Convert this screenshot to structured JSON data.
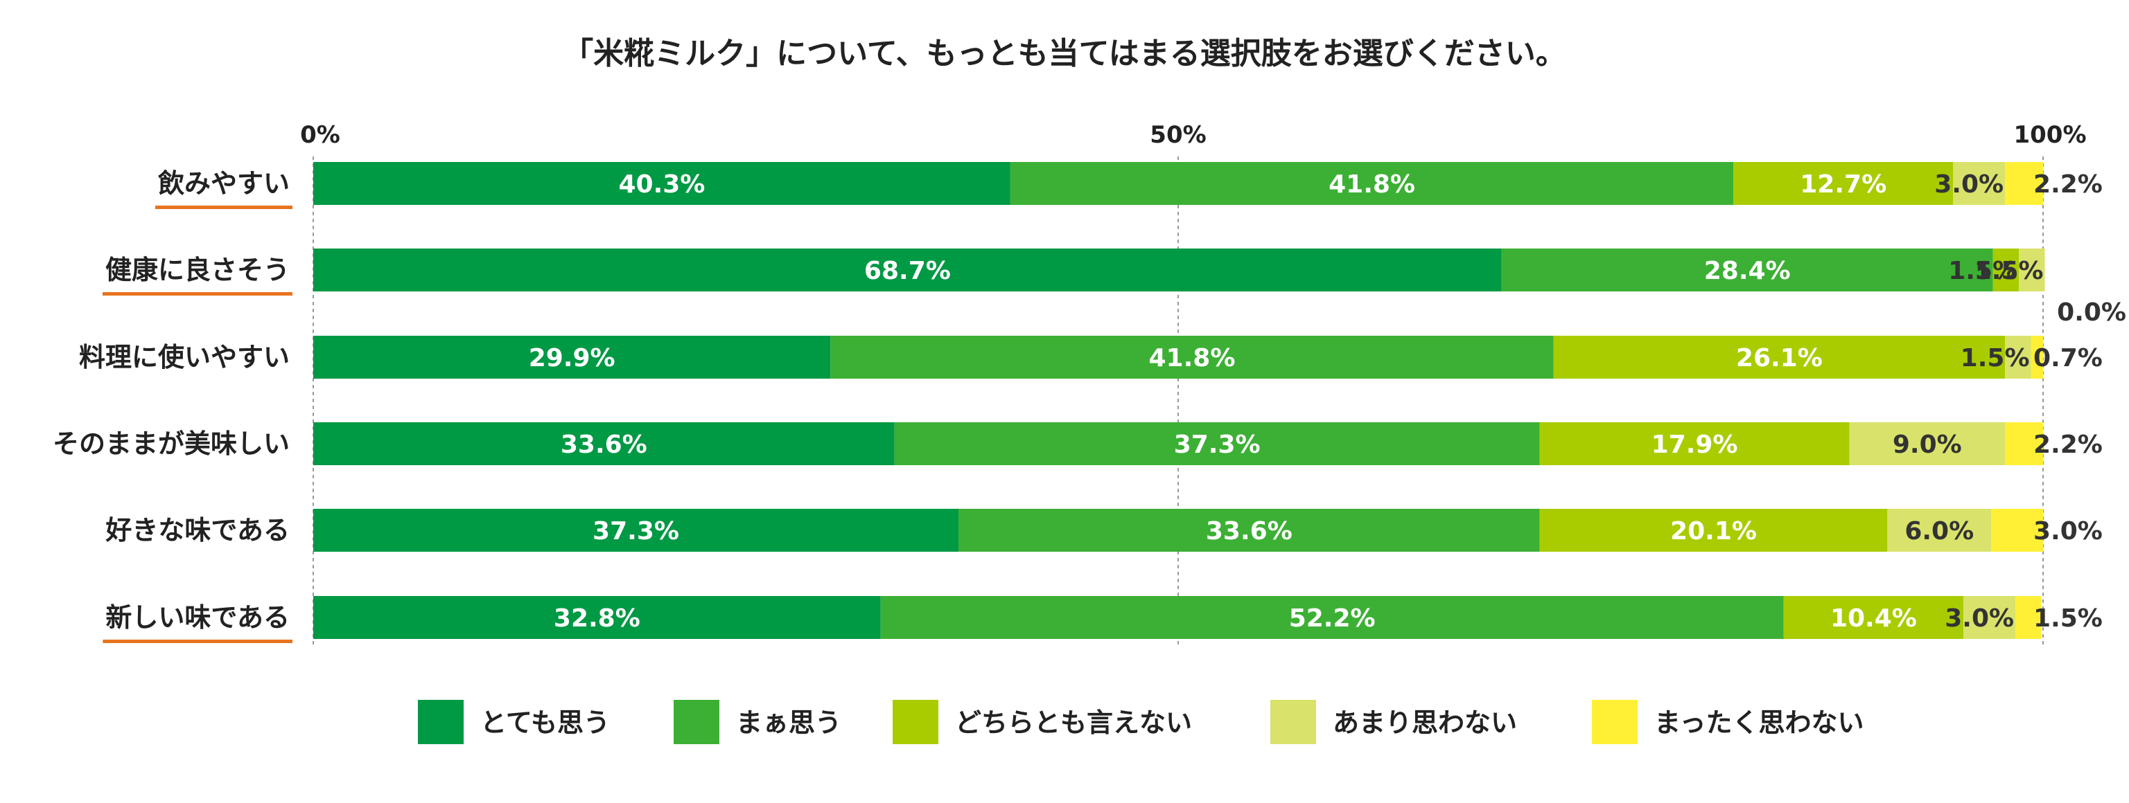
{
  "chart_data": {
    "type": "bar",
    "orientation": "horizontal",
    "stacked": true,
    "title": "「米糀ミルク」について、もっとも当てはまる選択肢をお選びください。",
    "x_ticks": [
      "0%",
      "50%",
      "100%"
    ],
    "xlim": [
      0,
      100
    ],
    "categories": [
      "飲みやすい",
      "健康に良さそう",
      "料理に使いやすい",
      "そのままが美味しい",
      "好きな味である",
      "新しい味である"
    ],
    "underlined_categories": [
      "飲みやすい",
      "健康に良さそう",
      "新しい味である"
    ],
    "series": [
      {
        "name": "とても思う",
        "color": "#009944",
        "values": [
          40.3,
          68.7,
          29.9,
          33.6,
          37.3,
          32.8
        ]
      },
      {
        "name": "まぁ思う",
        "color": "#3cb034",
        "values": [
          41.8,
          28.4,
          41.8,
          37.3,
          33.6,
          52.2
        ]
      },
      {
        "name": "どちらとも言えない",
        "color": "#a8cc00",
        "values": [
          12.7,
          1.5,
          26.1,
          17.9,
          20.1,
          10.4
        ]
      },
      {
        "name": "あまり思わない",
        "color": "#d9e36b",
        "values": [
          3.0,
          1.5,
          1.5,
          9.0,
          6.0,
          3.0
        ]
      },
      {
        "name": "まったく思わない",
        "color": "#fff036",
        "values": [
          2.2,
          0.0,
          0.7,
          2.2,
          3.0,
          1.5
        ]
      }
    ],
    "data_labels": [
      [
        "40.3%",
        "41.8%",
        "12.7%",
        "3.0%",
        "2.2%"
      ],
      [
        "68.7%",
        "28.4%",
        "1.5%",
        "1.5%",
        "0.0%"
      ],
      [
        "29.9%",
        "41.8%",
        "26.1%",
        "1.5%",
        "0.7%"
      ],
      [
        "33.6%",
        "37.3%",
        "17.9%",
        "9.0%",
        "2.2%"
      ],
      [
        "37.3%",
        "33.6%",
        "20.1%",
        "6.0%",
        "3.0%"
      ],
      [
        "32.8%",
        "52.2%",
        "10.4%",
        "3.0%",
        "1.5%"
      ]
    ],
    "grid": true,
    "legend_position": "bottom",
    "accent_underline_color": "#e8731e"
  }
}
